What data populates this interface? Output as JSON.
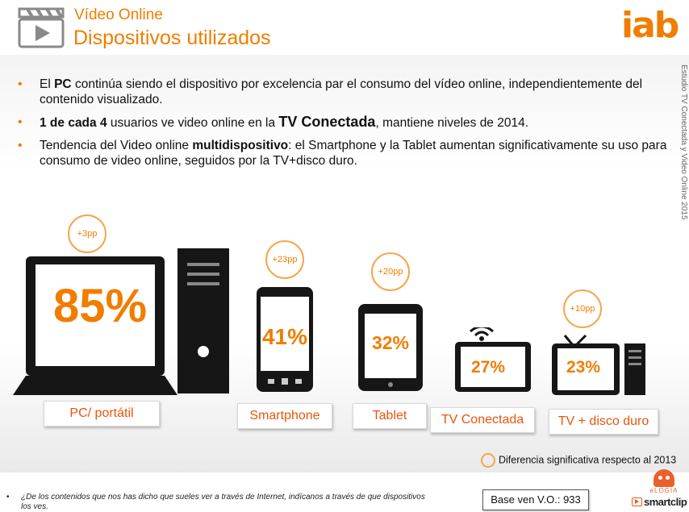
{
  "header": {
    "title": "Vídeo Online",
    "subtitle": "Dispositivos utilizados",
    "logo": "iab",
    "icon": "clapperboard-icon",
    "accent_color": "#f07d00"
  },
  "side_note": "Estudio TV Conectada y Video Online 2015",
  "bullets": [
    {
      "parts": [
        {
          "t": "El "
        },
        {
          "t": "PC",
          "b": true
        },
        {
          "t": " continúa siendo el dispositivo por excelencia par el consumo del vídeo online, independientemente del contenido visualizado."
        }
      ]
    },
    {
      "parts": [
        {
          "t": "1 de cada 4",
          "b": true
        },
        {
          "t": " usuarios ve video online en la "
        },
        {
          "t": "TV Conectada",
          "b": true,
          "big": true
        },
        {
          "t": ", mantiene niveles de 2014."
        }
      ]
    },
    {
      "parts": [
        {
          "t": "Tendencia del Video online "
        },
        {
          "t": "multidispositivo",
          "b": true
        },
        {
          "t": ": el Smartphone y la Tablet aumentan significativamente su uso para consumo de video online, seguidos por la TV+disco duro."
        }
      ]
    }
  ],
  "chart_data": {
    "type": "bar",
    "categories": [
      "PC/ portátil",
      "Smartphone",
      "Tablet",
      "TV Conectada",
      "TV + disco duro"
    ],
    "values": [
      85,
      41,
      32,
      27,
      23
    ],
    "value_labels": [
      "85%",
      "41%",
      "32%",
      "27%",
      "23%"
    ],
    "significant_change": [
      "+3pp",
      "+23pp",
      "+20pp",
      "",
      "+10pp"
    ],
    "unit": "%"
  },
  "legend": {
    "label": "Diferencia significativa respecto al 2013"
  },
  "footnote": "¿De los contenidos que nos has dicho que sueles ver a través de Internet, indícanos a través de que dispositivos los ves.",
  "base": "Base ven V.O.: 933",
  "brands": {
    "elogia": "eLOGIA",
    "smartclip": "smartclip"
  }
}
